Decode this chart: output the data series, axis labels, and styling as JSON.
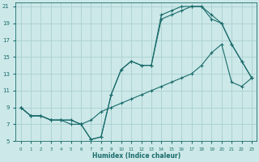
{
  "xlabel": "Humidex (Indice chaleur)",
  "bg_color": "#cce8e8",
  "grid_color": "#aacfcf",
  "line_color": "#1a6b6b",
  "xlim": [
    -0.5,
    23.5
  ],
  "ylim": [
    5,
    21.5
  ],
  "yticks": [
    5,
    7,
    9,
    11,
    13,
    15,
    17,
    19,
    21
  ],
  "xticks": [
    0,
    1,
    2,
    3,
    4,
    5,
    6,
    7,
    8,
    9,
    10,
    11,
    12,
    13,
    14,
    15,
    16,
    17,
    18,
    19,
    20,
    21,
    22,
    23
  ],
  "line1_x": [
    0,
    1,
    2,
    3,
    4,
    5,
    6,
    7,
    8,
    9,
    10,
    11,
    12,
    13,
    14,
    15,
    16,
    17,
    18,
    19,
    20,
    21,
    22,
    23
  ],
  "line1_y": [
    9,
    8,
    8,
    7.5,
    7.5,
    7.5,
    7.0,
    5.2,
    5.5,
    10.5,
    13.5,
    14.5,
    14.0,
    14.0,
    19.5,
    20.0,
    20.5,
    21.0,
    21.0,
    19.5,
    19.0,
    16.5,
    14.5,
    12.5
  ],
  "line2_x": [
    0,
    1,
    2,
    3,
    4,
    5,
    6,
    7,
    8,
    9,
    10,
    11,
    12,
    13,
    14,
    15,
    16,
    17,
    18,
    19,
    20,
    21,
    22,
    23
  ],
  "line2_y": [
    9,
    8,
    8,
    7.5,
    7.5,
    7.5,
    7.0,
    5.2,
    5.5,
    10.5,
    13.5,
    14.5,
    14.0,
    14.0,
    20.0,
    20.5,
    21.0,
    21.0,
    21.0,
    20.0,
    19.0,
    16.5,
    14.5,
    12.5
  ],
  "line3_x": [
    0,
    1,
    2,
    3,
    4,
    5,
    6,
    7,
    8,
    9,
    10,
    11,
    12,
    13,
    14,
    15,
    16,
    17,
    18,
    19,
    20,
    21,
    22,
    23
  ],
  "line3_y": [
    9,
    8,
    8,
    7.5,
    7.5,
    7.0,
    7.0,
    7.5,
    8.5,
    9.0,
    9.5,
    10.0,
    10.5,
    11.0,
    11.5,
    12.0,
    12.5,
    13.0,
    14.0,
    15.5,
    16.5,
    12.0,
    11.5,
    12.5
  ]
}
